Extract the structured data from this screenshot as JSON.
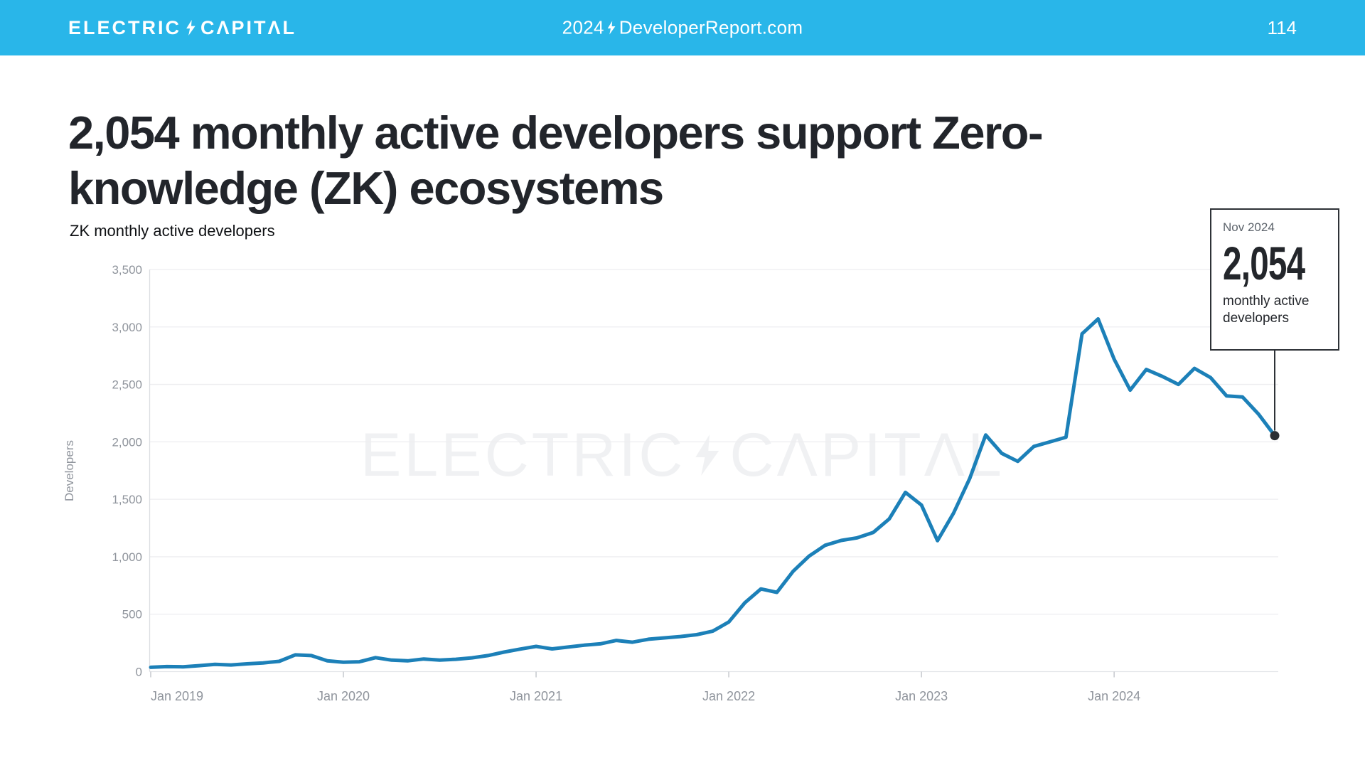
{
  "header": {
    "logo_part1": "ELECTRIC",
    "logo_part2": "CΛPITΛL",
    "center_year": "2024",
    "center_site": "DeveloperReport.com",
    "page_number": "114",
    "bg_color": "#29b6e9"
  },
  "title_lines": [
    "2,054 monthly active developers support Zero-",
    "knowledge (ZK) ecosystems"
  ],
  "watermark": {
    "part1": "ELECTRIC",
    "part2": "CΛPITΛL"
  },
  "annotation": {
    "date": "Nov 2024",
    "value": "2,054",
    "caption": "monthly active developers"
  },
  "chart_data": {
    "type": "line",
    "title": "ZK monthly active developers",
    "ylabel": "Developers",
    "xlabel": "",
    "frequency": "monthly",
    "start_month": "Jan 2019",
    "end_month": "Nov 2024",
    "series": [
      {
        "name": "ZK monthly active developers",
        "values": [
          38,
          44,
          42,
          52,
          64,
          58,
          68,
          76,
          90,
          146,
          140,
          94,
          82,
          86,
          122,
          100,
          94,
          110,
          100,
          108,
          120,
          140,
          170,
          196,
          220,
          198,
          214,
          230,
          242,
          272,
          256,
          282,
          294,
          306,
          322,
          352,
          432,
          600,
          720,
          690,
          872,
          1005,
          1100,
          1142,
          1165,
          1212,
          1330,
          1560,
          1450,
          1140,
          1380,
          1680,
          2060,
          1900,
          1830,
          1960,
          2000,
          2040,
          2940,
          3070,
          2720,
          2450,
          2630,
          2570,
          2500,
          2640,
          2560,
          2400,
          2390,
          2240,
          2054
        ]
      }
    ],
    "last_point": {
      "label": "Nov 2024",
      "value": 2054
    },
    "peak_value": 3070,
    "ylim": [
      0,
      3500
    ],
    "ytick_labels": [
      "0",
      "500",
      "1,000",
      "1,500",
      "2,000",
      "2,500",
      "3,000",
      "3,500"
    ],
    "ytick_values": [
      0,
      500,
      1000,
      1500,
      2000,
      2500,
      3000,
      3500
    ],
    "xtick_labels": [
      "Jan 2019",
      "Jan 2020",
      "Jan 2021",
      "Jan 2022",
      "Jan 2023",
      "Jan 2024"
    ],
    "xtick_month_index": [
      0,
      12,
      24,
      36,
      48,
      60
    ],
    "grid": "horizontal",
    "legend": "none",
    "colors": {
      "line": "#1c80b8",
      "grid": "#ededf0",
      "zero_line": "#e2e4e8",
      "axis_line": "#dcdee2",
      "tick_mark": "#c6c9ce",
      "tick_label": "#8f949c",
      "marker": "#2b2f34",
      "callout_line": "#2e3237"
    }
  }
}
